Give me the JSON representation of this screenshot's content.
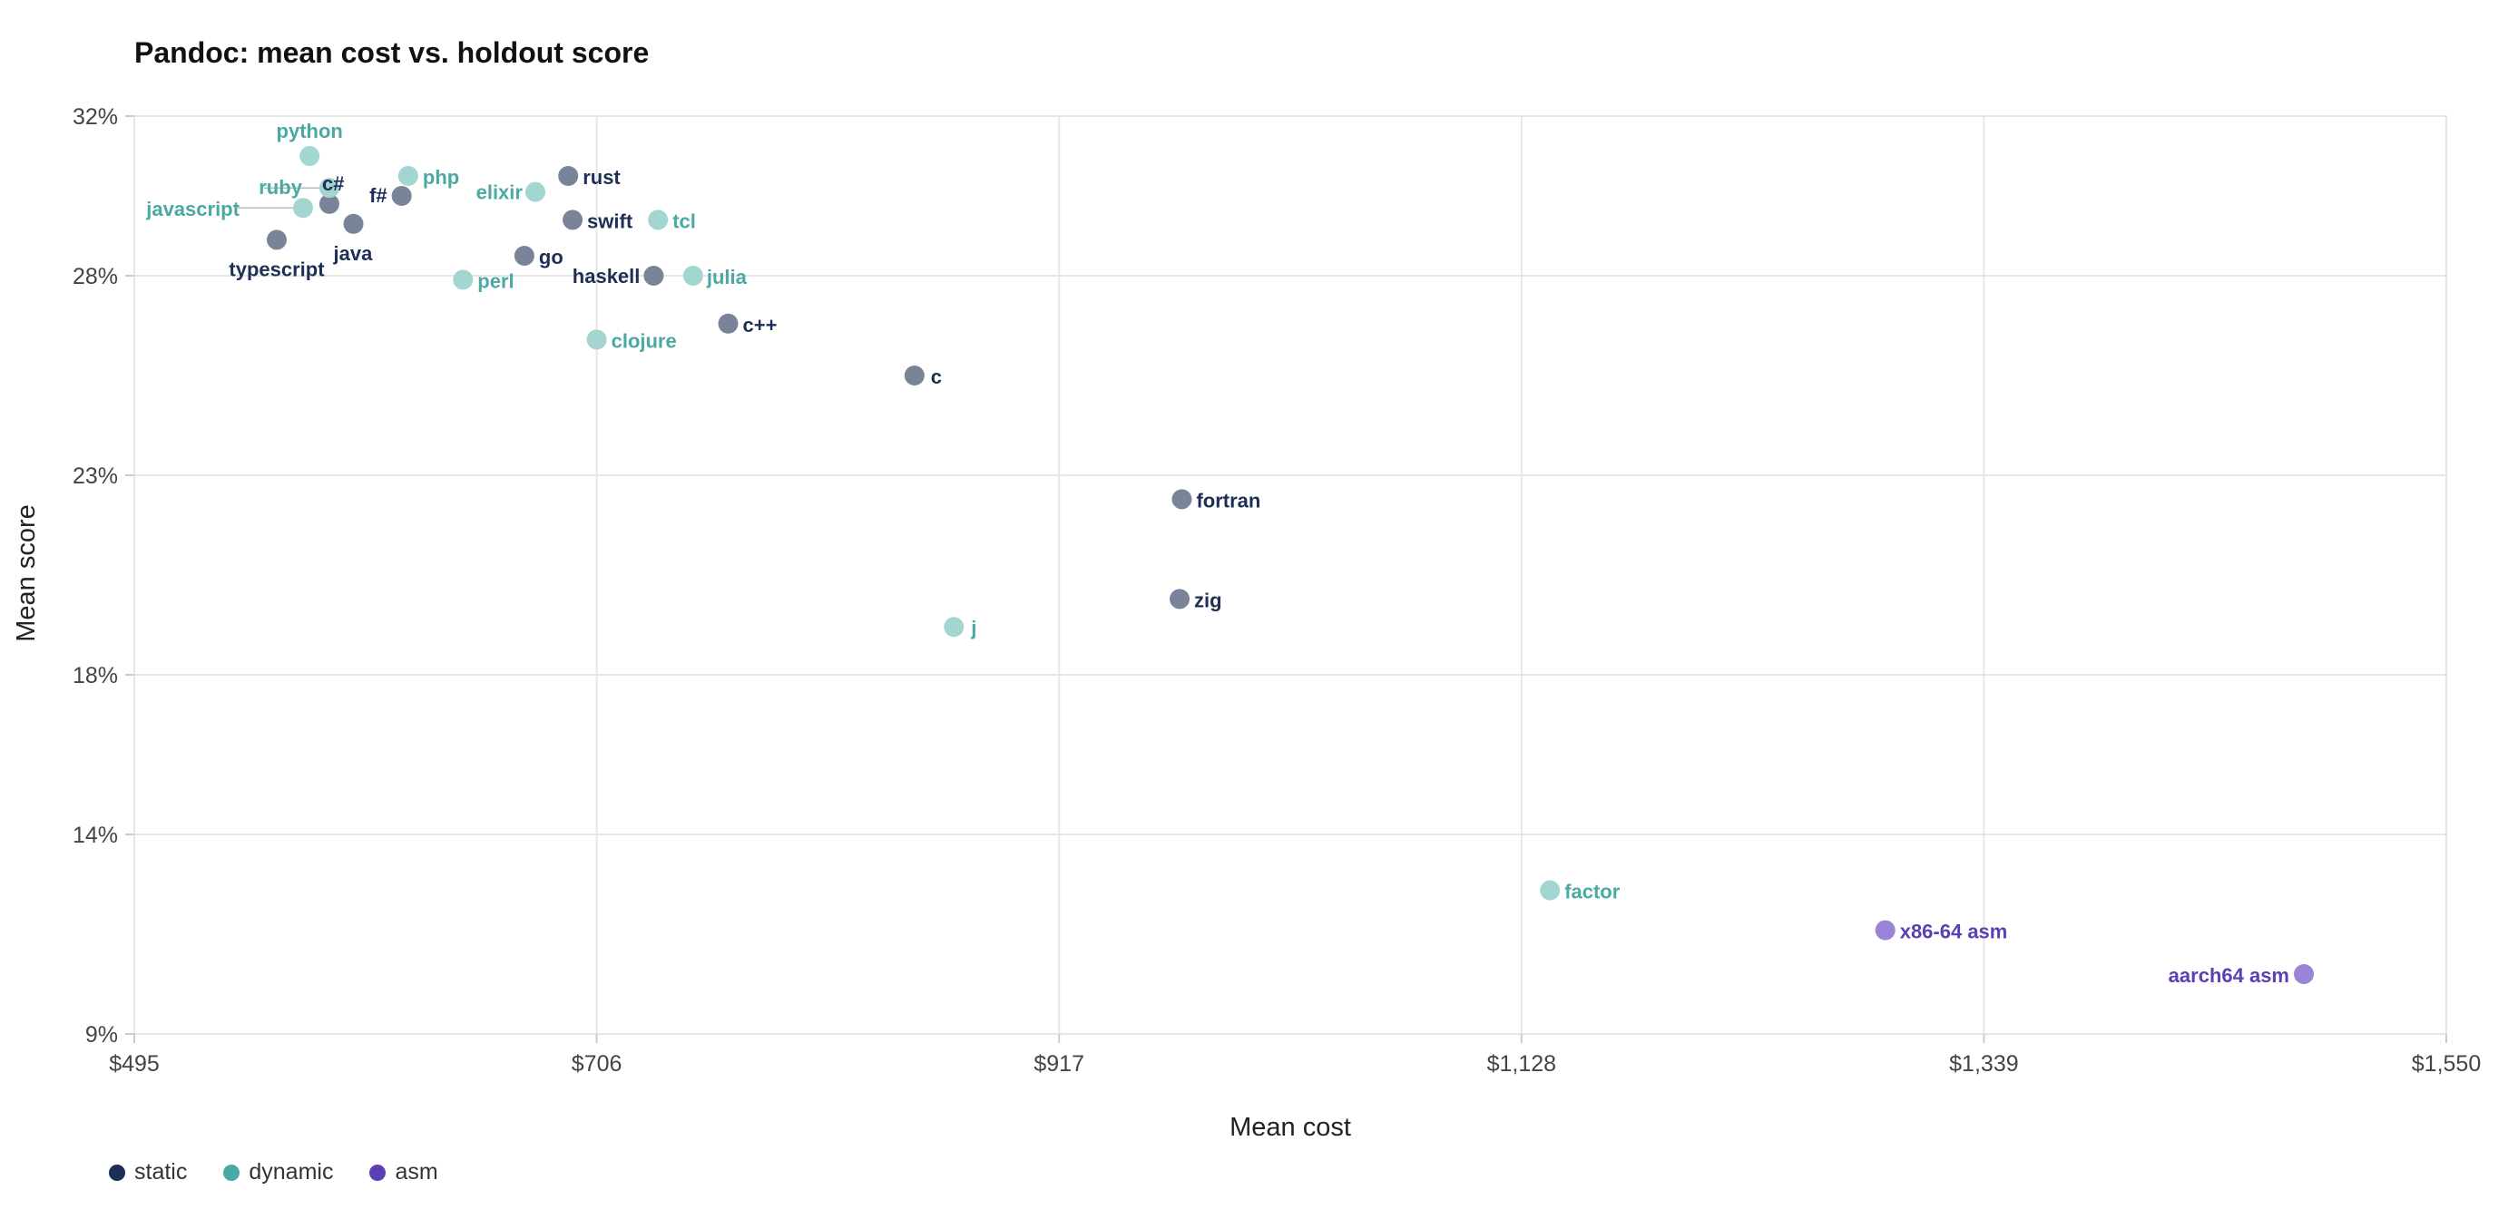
{
  "chart_data": {
    "type": "scatter",
    "title": "Pandoc: mean cost vs. holdout score",
    "xlabel": "Mean cost",
    "ylabel": "Mean score",
    "xlim": [
      495,
      1550
    ],
    "ylim": [
      9,
      32
    ],
    "x_ticks": [
      495,
      706,
      917,
      1128,
      1339,
      1550
    ],
    "x_tick_labels": [
      "$495",
      "$706",
      "$917",
      "$1,128",
      "$1,339",
      "$1,550"
    ],
    "y_ticks": [
      9,
      14,
      18,
      23,
      28,
      32
    ],
    "y_tick_labels": [
      "9%",
      "14%",
      "18%",
      "23%",
      "28%",
      "32%"
    ],
    "grid": true,
    "legend_position": "bottom-left",
    "colors": {
      "static": "#1e2f55",
      "dynamic": "#4aa9a3",
      "asm": "#5b3fb3",
      "static_point": "#7a8498",
      "dynamic_point": "#a3d5d1",
      "asm_point": "#9a83d8",
      "grid": "#e6e6e6"
    },
    "series": [
      {
        "name": "static",
        "points": [
          {
            "label": "c#",
            "x": 584,
            "y": 29.8
          },
          {
            "label": "f#",
            "x": 617,
            "y": 30.0
          },
          {
            "label": "java",
            "x": 595,
            "y": 29.3
          },
          {
            "label": "typescript",
            "x": 560,
            "y": 28.9
          },
          {
            "label": "go",
            "x": 673,
            "y": 28.5
          },
          {
            "label": "rust",
            "x": 693,
            "y": 30.5
          },
          {
            "label": "swift",
            "x": 695,
            "y": 29.4
          },
          {
            "label": "haskell",
            "x": 732,
            "y": 28.0
          },
          {
            "label": "c++",
            "x": 766,
            "y": 26.8
          },
          {
            "label": "c",
            "x": 851,
            "y": 25.5
          },
          {
            "label": "fortran",
            "x": 973,
            "y": 22.4
          },
          {
            "label": "zig",
            "x": 972,
            "y": 19.9
          }
        ]
      },
      {
        "name": "dynamic",
        "points": [
          {
            "label": "python",
            "x": 575,
            "y": 31.0
          },
          {
            "label": "ruby",
            "x": 584,
            "y": 30.2
          },
          {
            "label": "javascript",
            "x": 572,
            "y": 29.7
          },
          {
            "label": "php",
            "x": 620,
            "y": 30.5
          },
          {
            "label": "elixir",
            "x": 678,
            "y": 30.1
          },
          {
            "label": "tcl",
            "x": 734,
            "y": 29.4
          },
          {
            "label": "julia",
            "x": 750,
            "y": 28.0
          },
          {
            "label": "perl",
            "x": 645,
            "y": 27.9
          },
          {
            "label": "clojure",
            "x": 706,
            "y": 26.4
          },
          {
            "label": "j",
            "x": 869,
            "y": 19.2
          },
          {
            "label": "factor",
            "x": 1141,
            "y": 12.6
          }
        ]
      },
      {
        "name": "asm",
        "points": [
          {
            "label": "x86-64 asm",
            "x": 1294,
            "y": 11.6
          },
          {
            "label": "aarch64 asm",
            "x": 1485,
            "y": 10.5
          }
        ]
      }
    ]
  }
}
